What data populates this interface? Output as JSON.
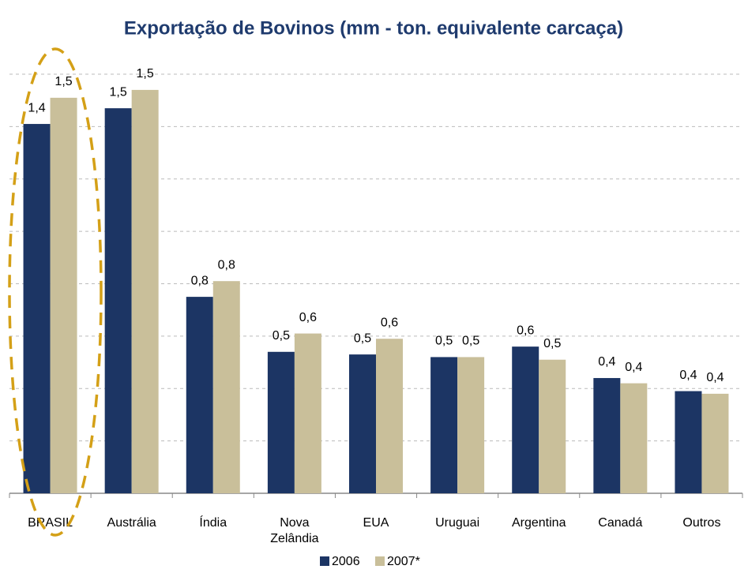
{
  "chart_data": {
    "type": "bar",
    "title": "Exportação de Bovinos (mm - ton. equivalente carcaça)",
    "categories": [
      "BRASIL",
      "Austrália",
      "Índia",
      "Nova Zelândia",
      "EUA",
      "Uruguai",
      "Argentina",
      "Canadá",
      "Outros"
    ],
    "series": [
      {
        "name": "2006",
        "color": "#1c3564",
        "values": [
          1.41,
          1.47,
          0.75,
          0.54,
          0.53,
          0.52,
          0.56,
          0.44,
          0.39
        ],
        "value_labels": [
          "1,4",
          "1,5",
          "0,8",
          "0,5",
          "0,5",
          "0,5",
          "0,6",
          "0,4",
          "0,4"
        ]
      },
      {
        "name": "2007*",
        "color": "#c9bf9a",
        "values": [
          1.51,
          1.54,
          0.81,
          0.61,
          0.59,
          0.52,
          0.51,
          0.42,
          0.38
        ],
        "value_labels": [
          "1,5",
          "1,5",
          "0,8",
          "0,6",
          "0,6",
          "0,5",
          "0,5",
          "0,4",
          "0,4"
        ]
      }
    ],
    "ylim": [
      0,
      1.6
    ],
    "yticks": [
      0,
      0.2,
      0.4,
      0.6,
      0.8,
      1.0,
      1.2,
      1.4,
      1.6
    ],
    "grid": true
  }
}
